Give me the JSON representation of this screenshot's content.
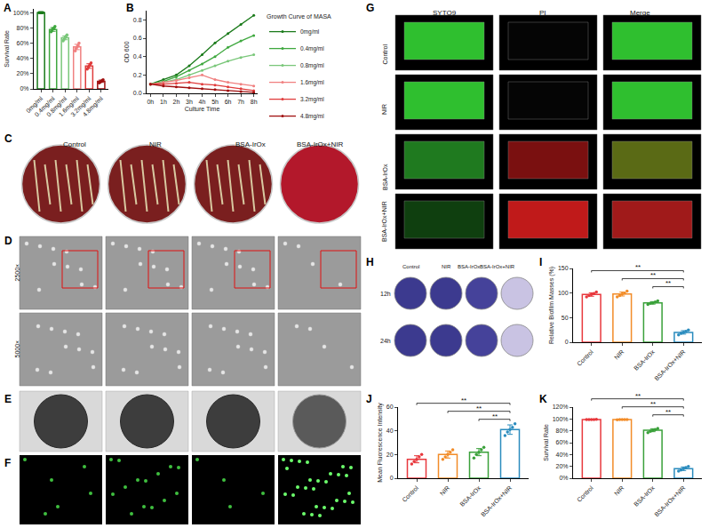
{
  "chart_data": [
    {
      "panel": "A",
      "type": "bar",
      "y_label": "Survival Rate",
      "categories": [
        "0mg/ml",
        "0.4mg/ml",
        "0.8mg/ml",
        "1.6mg/ml",
        "3.2mg/ml",
        "4.8mg/ml"
      ],
      "values": [
        100,
        78,
        67,
        55,
        30,
        10
      ],
      "errors": [
        0.5,
        2.5,
        2.5,
        3.5,
        3,
        1.5
      ],
      "points": [
        [
          100,
          100,
          100,
          100,
          100
        ],
        [
          75,
          77,
          79,
          80,
          82
        ],
        [
          63,
          65,
          67,
          69,
          71
        ],
        [
          50,
          53,
          55,
          57,
          60
        ],
        [
          26,
          28,
          30,
          32,
          34
        ],
        [
          8,
          9,
          10,
          11,
          12
        ]
      ],
      "colors": [
        "#1a7a1a",
        "#3fa83f",
        "#7ac77a",
        "#f08080",
        "#e03c3c",
        "#a01010"
      ],
      "ylim": [
        0,
        105
      ],
      "yticks": [
        {
          "value": 0,
          "label": "0%"
        },
        {
          "value": 20,
          "label": "20%"
        },
        {
          "value": 40,
          "label": "40%"
        },
        {
          "value": 60,
          "label": "60%"
        },
        {
          "value": 80,
          "label": "80%"
        },
        {
          "value": 100,
          "label": "100%"
        }
      ],
      "grid": false
    },
    {
      "panel": "B",
      "type": "line",
      "title": "Growth Curve of MASA",
      "x_label": "Culture Time",
      "y_label": "OD 600",
      "categories": [
        "0h",
        "1h",
        "2h",
        "3h",
        "4h",
        "5h",
        "6h",
        "7h",
        "8h"
      ],
      "series": [
        {
          "name": "0mg/ml",
          "color": "#1a7a1a",
          "values": [
            0.1,
            0.15,
            0.2,
            0.3,
            0.42,
            0.55,
            0.65,
            0.75,
            0.85
          ]
        },
        {
          "name": "0.4mg/ml",
          "color": "#3fa83f",
          "values": [
            0.1,
            0.13,
            0.18,
            0.25,
            0.32,
            0.4,
            0.5,
            0.57,
            0.63
          ]
        },
        {
          "name": "0.8mg/ml",
          "color": "#7ac77a",
          "values": [
            0.1,
            0.12,
            0.15,
            0.2,
            0.25,
            0.3,
            0.35,
            0.39,
            0.42
          ]
        },
        {
          "name": "1.6mg/ml",
          "color": "#f08080",
          "values": [
            0.1,
            0.12,
            0.14,
            0.17,
            0.2,
            0.15,
            0.12,
            0.1,
            0.08
          ]
        },
        {
          "name": "3.2mg/ml",
          "color": "#e03c3c",
          "values": [
            0.1,
            0.1,
            0.11,
            0.12,
            0.1,
            0.09,
            0.07,
            0.05,
            0.03
          ]
        },
        {
          "name": "4.8mg/ml",
          "color": "#a01010",
          "values": [
            0.1,
            0.08,
            0.07,
            0.06,
            0.05,
            0.04,
            0.03,
            0.02,
            0.01
          ]
        }
      ],
      "ylim": [
        0,
        0.9
      ],
      "yticks": [
        {
          "value": 0,
          "label": "0.0"
        },
        0.2,
        0.4,
        0.6,
        0.8
      ],
      "legend": "right",
      "marker": "circle",
      "grid": false
    },
    {
      "panel": "I",
      "type": "bar",
      "y_label": "Relative Biofilm Masses (%)",
      "categories": [
        "Control",
        "NIR",
        "BSA-IrOx",
        "BSA-IrOx+NIR"
      ],
      "values": [
        97,
        98,
        80,
        20
      ],
      "errors": [
        3.5,
        4,
        2.5,
        3.5
      ],
      "points": [
        [
          92,
          95,
          97,
          99,
          102
        ],
        [
          92,
          95,
          98,
          100,
          104
        ],
        [
          77,
          79,
          80,
          82,
          84
        ],
        [
          15,
          18,
          20,
          22,
          25
        ]
      ],
      "colors": [
        "#e8383d",
        "#f28c28",
        "#3aa13a",
        "#2b8cbe"
      ],
      "ylim": [
        0,
        150
      ],
      "yticks": [
        0,
        50,
        100,
        150
      ],
      "grid": false,
      "significance": [
        {
          "from": "Control",
          "to": "BSA-IrOx+NIR",
          "label": "**"
        },
        {
          "from": "NIR",
          "to": "BSA-IrOx+NIR",
          "label": "**"
        },
        {
          "from": "BSA-IrOx",
          "to": "BSA-IrOx+NIR",
          "label": "**"
        }
      ]
    },
    {
      "panel": "J",
      "type": "bar",
      "y_label": "Mean Fluorescence Intensity",
      "categories": [
        "Control",
        "NIR",
        "BSA-IrOx",
        "BSA-IrOx+NIR"
      ],
      "values": [
        16,
        20,
        22,
        41
      ],
      "errors": [
        3,
        3,
        3,
        4
      ],
      "points": [
        [
          12,
          14,
          16,
          18,
          20
        ],
        [
          16,
          18,
          20,
          22,
          24
        ],
        [
          17,
          20,
          22,
          24,
          26
        ],
        [
          36,
          39,
          41,
          43,
          46
        ]
      ],
      "colors": [
        "#e8383d",
        "#f28c28",
        "#3aa13a",
        "#2b8cbe"
      ],
      "ylim": [
        0,
        60
      ],
      "yticks": [
        0,
        20,
        40,
        60
      ],
      "grid": false,
      "significance": [
        {
          "from": "Control",
          "to": "BSA-IrOx+NIR",
          "label": "**"
        },
        {
          "from": "NIR",
          "to": "BSA-IrOx+NIR",
          "label": "**"
        },
        {
          "from": "BSA-IrOx",
          "to": "BSA-IrOx+NIR",
          "label": "**"
        }
      ]
    },
    {
      "panel": "K",
      "type": "bar",
      "y_label": "Survival Rate",
      "categories": [
        "Control",
        "NIR",
        "BSA-IrOx",
        "BSA-IrOx+NIR"
      ],
      "values": [
        99,
        99,
        81,
        16
      ],
      "errors": [
        0.5,
        0.5,
        2.5,
        3
      ],
      "points": [
        [
          99,
          99,
          99,
          99,
          99.5
        ],
        [
          98.5,
          99,
          99,
          99,
          99
        ],
        [
          77,
          79,
          81,
          82,
          84
        ],
        [
          12,
          14,
          16,
          18,
          20
        ]
      ],
      "colors": [
        "#e8383d",
        "#f28c28",
        "#3aa13a",
        "#2b8cbe"
      ],
      "ylim": [
        0,
        120
      ],
      "yticks": [
        {
          "value": 0,
          "label": "0%"
        },
        {
          "value": 20,
          "label": "20%"
        },
        {
          "value": 40,
          "label": "40%"
        },
        {
          "value": 60,
          "label": "60%"
        },
        {
          "value": 80,
          "label": "80%"
        },
        {
          "value": 100,
          "label": "100%"
        },
        {
          "value": 120,
          "label": "120%"
        }
      ],
      "grid": false,
      "significance": [
        {
          "from": "Control",
          "to": "BSA-IrOx+NIR",
          "label": "**"
        },
        {
          "from": "NIR",
          "to": "BSA-IrOx+NIR",
          "label": "**"
        },
        {
          "from": "BSA-IrOx",
          "to": "BSA-IrOx+NIR",
          "label": "**"
        }
      ]
    }
  ],
  "image_panels": [
    {
      "panel": "C",
      "columns": [
        "Control",
        "NIR",
        "BSA-IrOx",
        "BSA-IrOx+NIR"
      ]
    },
    {
      "panel": "D",
      "rows": [
        "2500×",
        "5000×"
      ]
    },
    {
      "panel": "E"
    },
    {
      "panel": "F"
    },
    {
      "panel": "G",
      "columns": [
        "SYTO9",
        "PI",
        "Merge"
      ],
      "rows": [
        "Control",
        "NIR",
        "BSA-IrOx",
        "BSA-IrOx+NIR"
      ]
    },
    {
      "panel": "H",
      "columns": [
        "Control",
        "NIR",
        "BSA-IrOx",
        "BSA-IrOx+NIR"
      ],
      "rows": [
        "12h",
        "24h"
      ]
    }
  ]
}
